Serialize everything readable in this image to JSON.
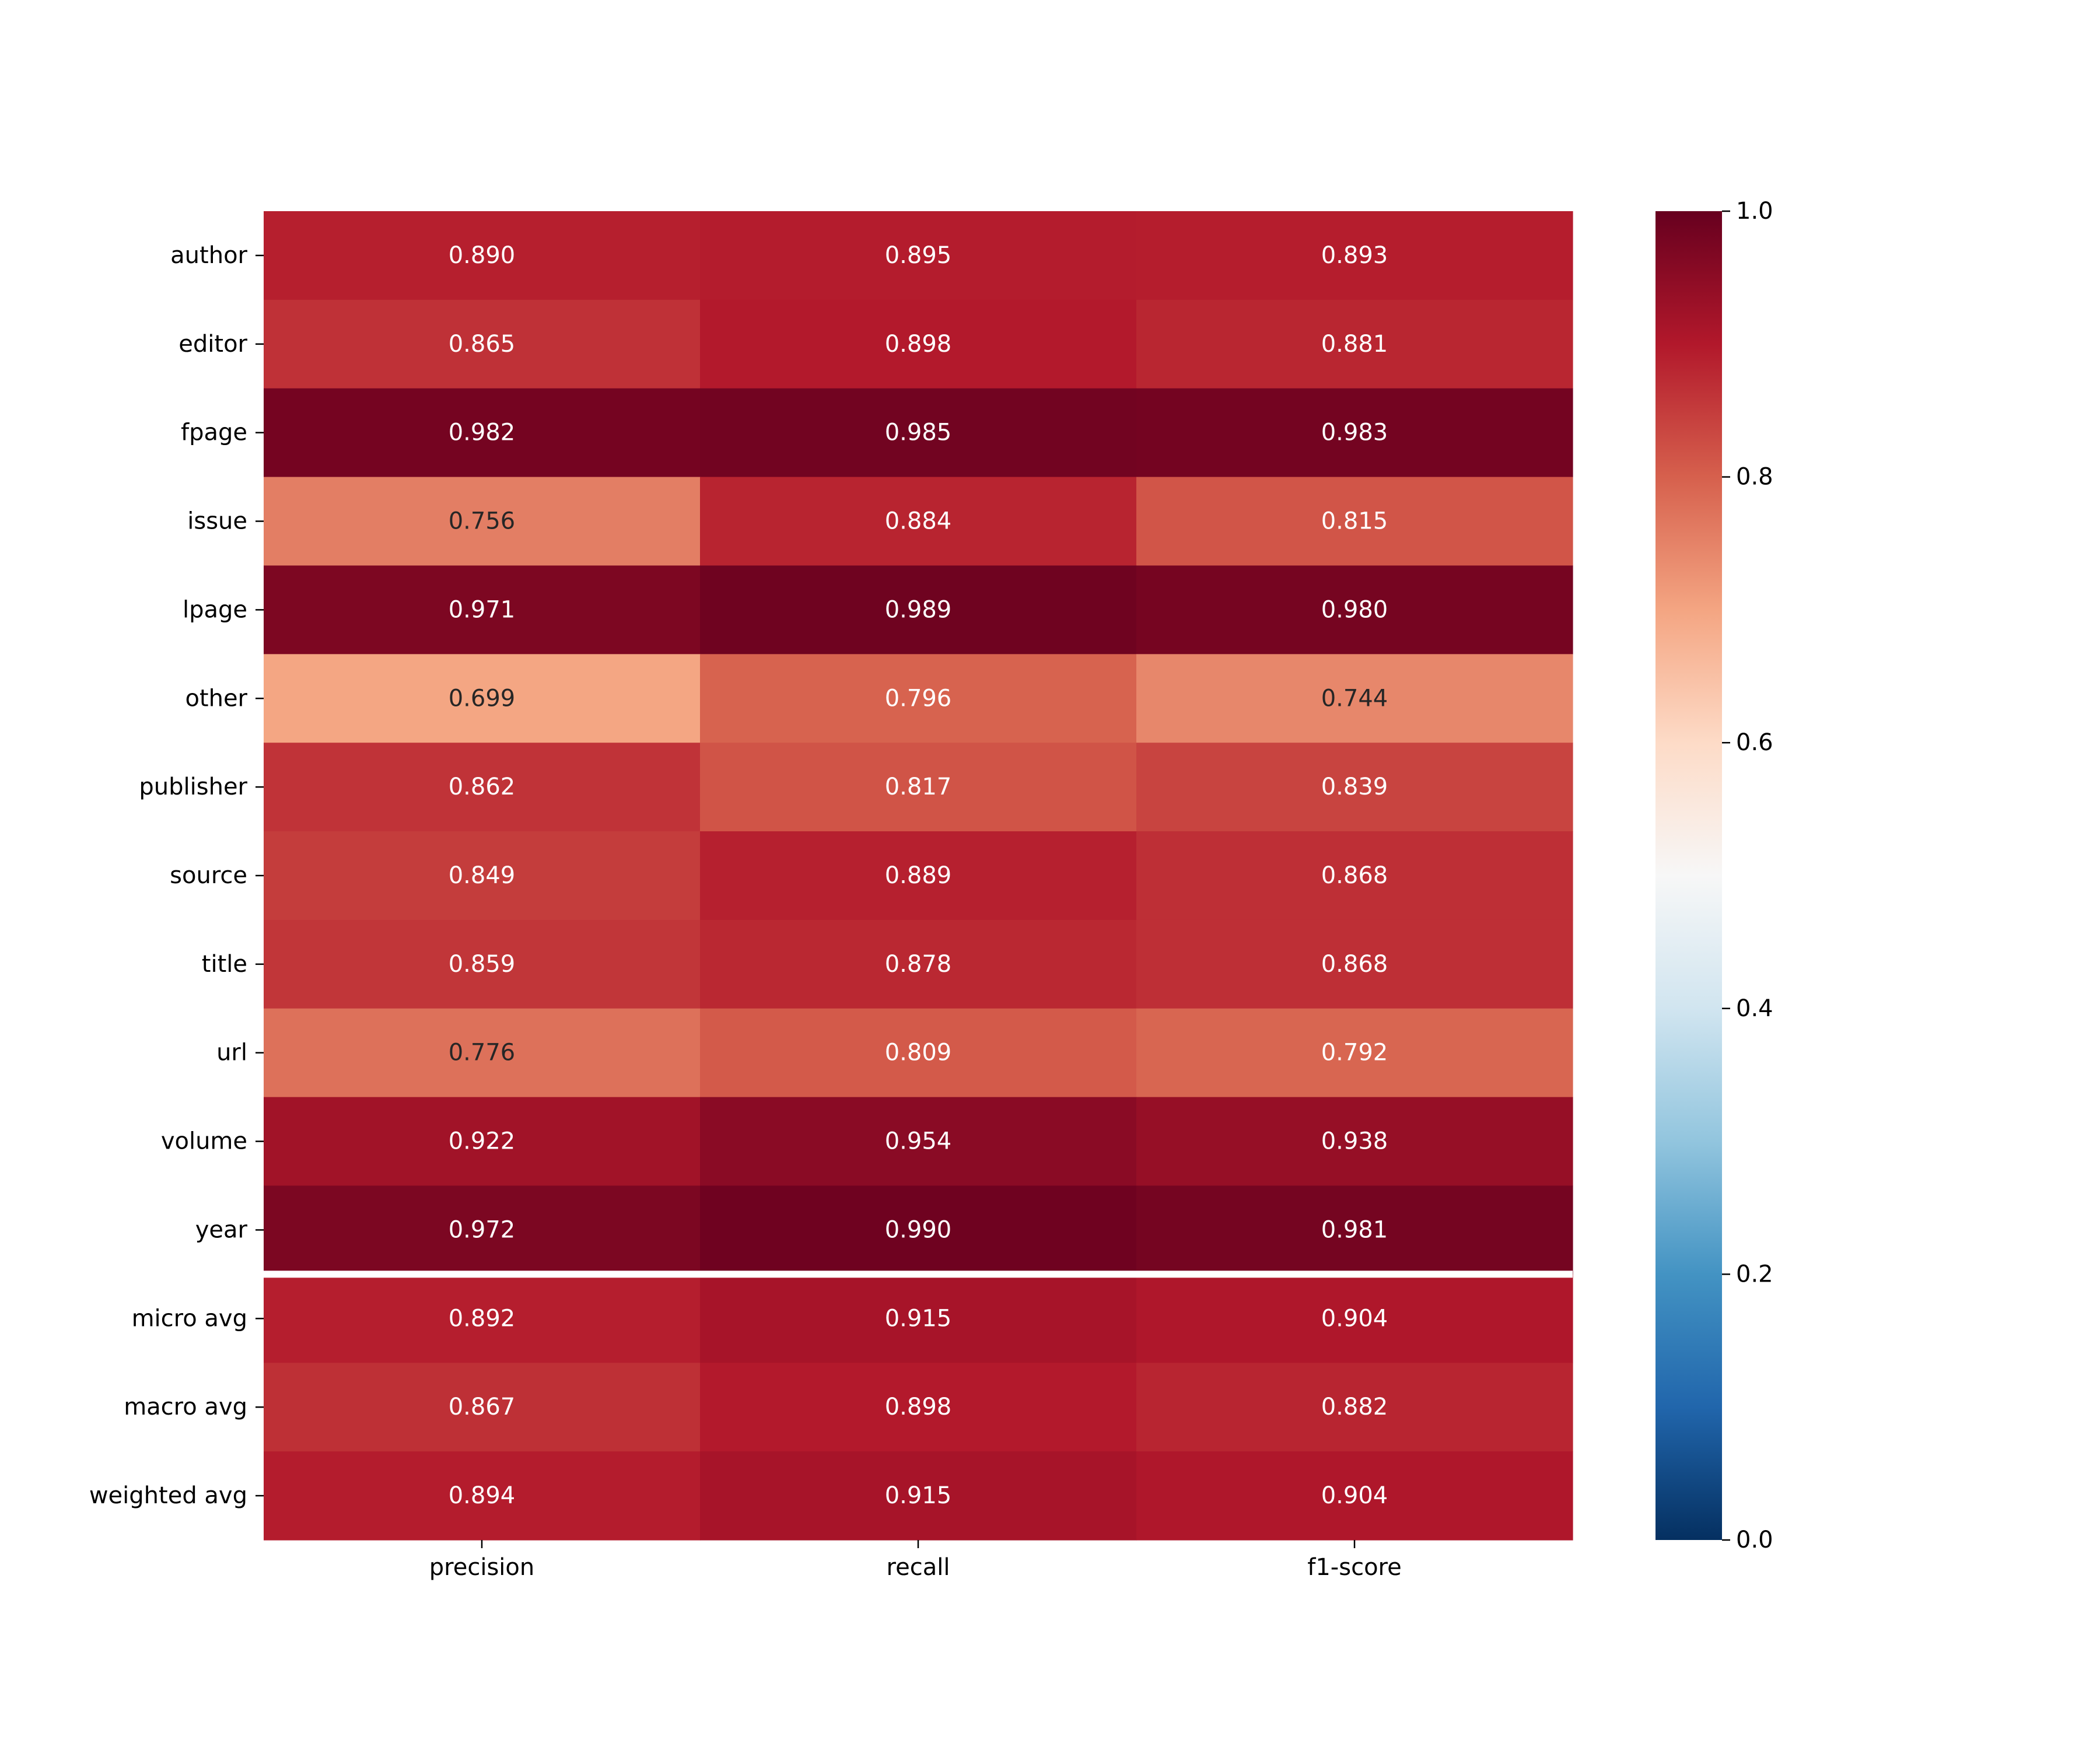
{
  "chart_data": {
    "type": "heatmap",
    "title": "",
    "xlabel": "",
    "ylabel": "",
    "columns": [
      "precision",
      "recall",
      "f1-score"
    ],
    "rows": [
      "author",
      "editor",
      "fpage",
      "issue",
      "lpage",
      "other",
      "publisher",
      "source",
      "title",
      "url",
      "volume",
      "year",
      "micro avg",
      "macro avg",
      "weighted avg"
    ],
    "values": [
      [
        0.89,
        0.895,
        0.893
      ],
      [
        0.865,
        0.898,
        0.881
      ],
      [
        0.982,
        0.985,
        0.983
      ],
      [
        0.756,
        0.884,
        0.815
      ],
      [
        0.971,
        0.989,
        0.98
      ],
      [
        0.699,
        0.796,
        0.744
      ],
      [
        0.862,
        0.817,
        0.839
      ],
      [
        0.849,
        0.889,
        0.868
      ],
      [
        0.859,
        0.878,
        0.868
      ],
      [
        0.776,
        0.809,
        0.792
      ],
      [
        0.922,
        0.954,
        0.938
      ],
      [
        0.972,
        0.99,
        0.981
      ],
      [
        0.892,
        0.915,
        0.904
      ],
      [
        0.867,
        0.898,
        0.882
      ],
      [
        0.894,
        0.915,
        0.904
      ]
    ],
    "value_format": "0.000",
    "separator_after_row": "year",
    "colormap": "RdBu_r",
    "vmin": 0.0,
    "vmax": 1.0,
    "colorbar_ticks": [
      "0.0",
      "0.2",
      "0.4",
      "0.6",
      "0.8",
      "1.0"
    ],
    "colorbar_tick_values": [
      0.0,
      0.2,
      0.4,
      0.6,
      0.8,
      1.0
    ],
    "colors": {
      "separator": "#ffffff",
      "label_text": "#000000",
      "cell_text_light": "#ffffff",
      "cell_text_dark": "#262626"
    }
  }
}
